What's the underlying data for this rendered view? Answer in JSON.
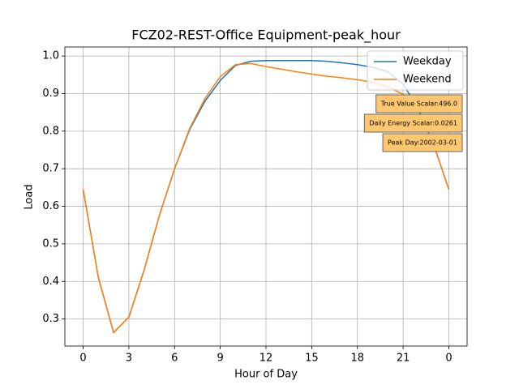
{
  "chart_data": {
    "type": "line",
    "title": "FCZ02-REST-Office Equipment-peak_hour",
    "x_label": "Hour of Day",
    "y_label": "Load",
    "x": [
      0,
      1,
      2,
      3,
      4,
      5,
      6,
      7,
      8,
      9,
      10,
      11,
      12,
      13,
      14,
      15,
      16,
      17,
      18,
      19,
      20,
      21,
      22,
      23,
      24
    ],
    "series": [
      {
        "name": "Weekday",
        "color": "#1f77b4",
        "values": [
          0.645,
          0.41,
          0.264,
          0.305,
          0.43,
          0.575,
          0.7,
          0.805,
          0.88,
          0.935,
          0.975,
          0.986,
          0.988,
          0.988,
          0.988,
          0.988,
          0.986,
          0.982,
          0.977,
          0.97,
          0.958,
          0.925,
          0.86,
          0.765,
          0.645
        ]
      },
      {
        "name": "Weekend",
        "color": "#ff7f0e",
        "values": [
          0.645,
          0.41,
          0.264,
          0.305,
          0.43,
          0.575,
          0.7,
          0.808,
          0.887,
          0.945,
          0.977,
          0.98,
          0.972,
          0.965,
          0.958,
          0.952,
          0.946,
          0.942,
          0.937,
          0.93,
          0.918,
          0.898,
          0.855,
          0.765,
          0.645
        ]
      }
    ],
    "xlim": [
      -1.2,
      25.2
    ],
    "xticks": [
      0,
      3,
      6,
      9,
      12,
      15,
      18,
      21,
      {
        "value": 24,
        "label": "0"
      }
    ],
    "ylim": [
      0.228,
      1.024
    ],
    "yticks": [
      {
        "value": 0.3,
        "label": "0.3"
      },
      {
        "value": 0.4,
        "label": "0.4"
      },
      {
        "value": 0.5,
        "label": "0.5"
      },
      {
        "value": 0.6,
        "label": "0.6"
      },
      {
        "value": 0.7,
        "label": "0.7"
      },
      {
        "value": 0.8,
        "label": "0.8"
      },
      {
        "value": 0.9,
        "label": "0.9"
      },
      {
        "value": 1.0,
        "label": "1.0"
      }
    ],
    "grid": true,
    "legend": "upper right",
    "annotations": [
      "True Value Scalar:496.0",
      "Daily Energy Scalar:0.0261",
      "Peak Day:2002-03-01"
    ]
  }
}
